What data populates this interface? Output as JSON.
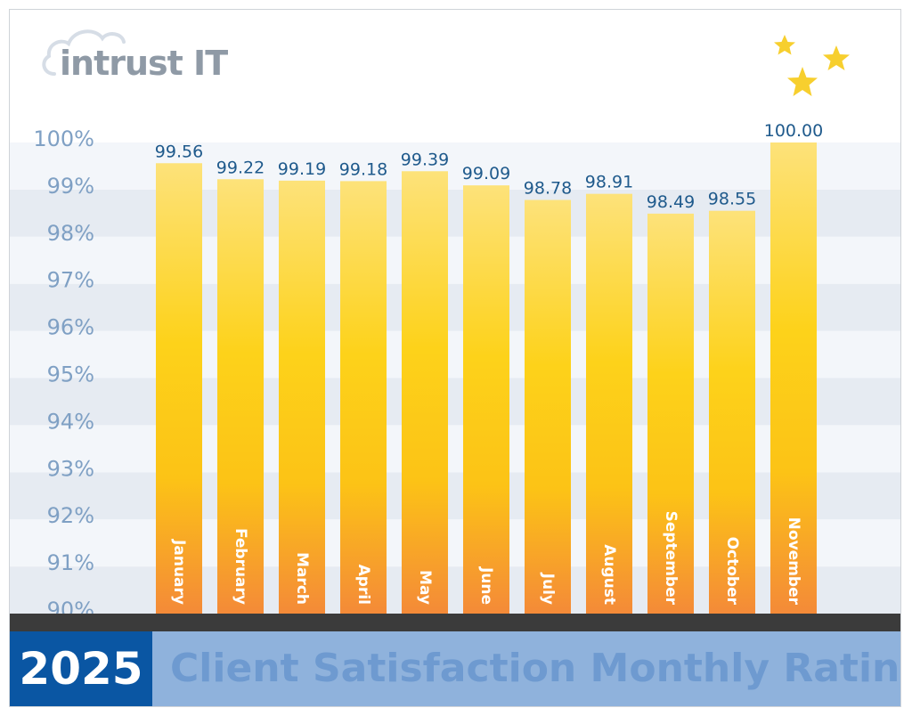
{
  "brand": {
    "logo_text": "intrust IT"
  },
  "footer": {
    "year": "2025",
    "title": "Client Satisfaction Monthly Rating"
  },
  "colors": {
    "accent_blue": "#0a56a3",
    "footer_blue": "#8fb2dc",
    "value_label": "#1f5a8c",
    "tick_label": "#7fa0c4",
    "bar_top": "#fde27a",
    "bar_mid": "#fdd21a",
    "bar_bottom": "#f48a38",
    "star": "#f7cf2e"
  },
  "chart_data": {
    "type": "bar",
    "title": "Client Satisfaction Monthly Rating",
    "xlabel": "",
    "ylabel": "",
    "ylim": [
      90,
      100
    ],
    "yticks": [
      "90%",
      "91%",
      "92%",
      "93%",
      "94%",
      "95%",
      "96%",
      "97%",
      "98%",
      "99%",
      "100%"
    ],
    "grid": "alternating horizontal bands",
    "categories": [
      "January",
      "February",
      "March",
      "April",
      "May",
      "June",
      "July",
      "August",
      "September",
      "October",
      "November"
    ],
    "values": [
      99.56,
      99.22,
      99.19,
      99.18,
      99.39,
      99.09,
      98.78,
      98.91,
      98.49,
      98.55,
      100.0
    ],
    "value_labels": [
      "99.56",
      "99.22",
      "99.19",
      "99.18",
      "99.39",
      "99.09",
      "98.78",
      "98.91",
      "98.49",
      "98.55",
      "100.00"
    ]
  }
}
